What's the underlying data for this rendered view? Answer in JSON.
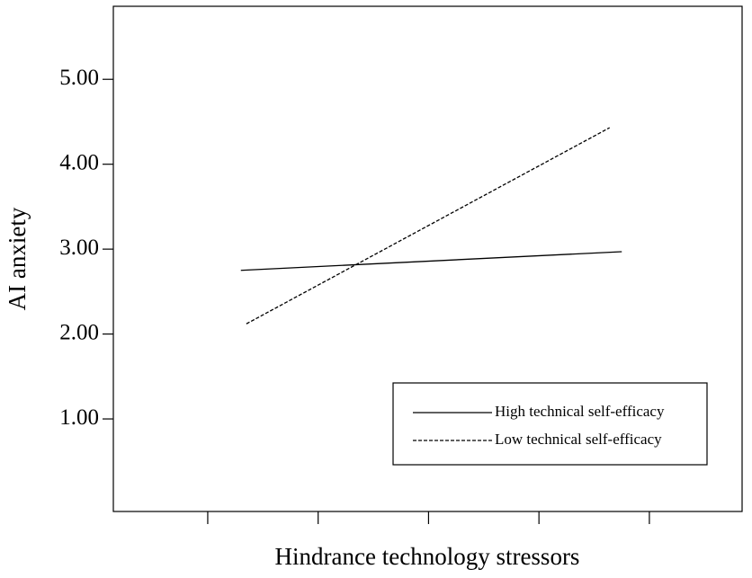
{
  "chart_data": {
    "type": "line",
    "x_label": "Hindrance technology stressors",
    "y_label": "AI anxiety",
    "xlim": [
      0.145,
      5.84
    ],
    "xticks": [
      1,
      2,
      3,
      4,
      5
    ],
    "ylim": [
      -0.09,
      5.86
    ],
    "yticks": [
      {
        "value": 1,
        "label": "1.00"
      },
      {
        "value": 2,
        "label": "2.00"
      },
      {
        "value": 3,
        "label": "3.00"
      },
      {
        "value": 4,
        "label": "4.00"
      },
      {
        "value": 5,
        "label": "5.00"
      }
    ],
    "series": [
      {
        "name": "High technical self-efficacy",
        "color": "#000000",
        "linestyle": "solid",
        "x": [
          1.3,
          4.75
        ],
        "values": [
          2.75,
          2.97
        ]
      },
      {
        "name": "Low technical self-efficacy",
        "color": "#000000",
        "linestyle": "dashed",
        "x": [
          1.35,
          4.64
        ],
        "values": [
          2.12,
          4.43
        ]
      }
    ],
    "legend": "lower right"
  }
}
